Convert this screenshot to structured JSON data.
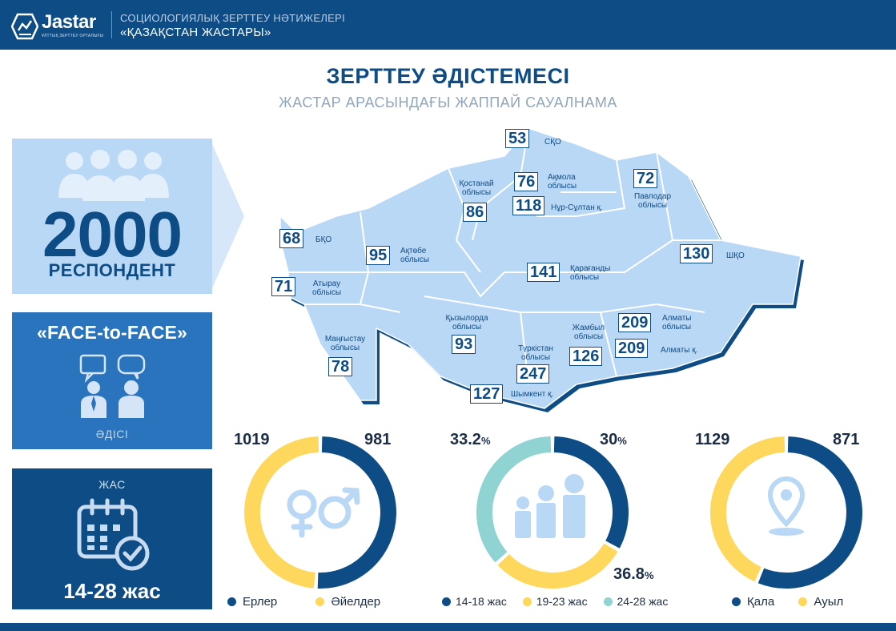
{
  "header": {
    "brand": "Jastar",
    "brand_sub": "ҰЛТТЫҚ ЗЕРТТЕУ ОРТАЛЫҒЫ",
    "line1": "СОЦИОЛОГИЯЛЫҚ ЗЕРТТЕУ НӘТИЖЕЛЕРІ",
    "line2": "«ҚАЗАҚСТАН ЖАСТАРЫ»"
  },
  "title": "ЗЕРТТЕУ ӘДІСТЕМЕСІ",
  "subtitle": "ЖАСТАР АРАСЫНДАҒЫ ЖАППАЙ САУАЛНАМА",
  "respondents": {
    "count": "2000",
    "label": "РЕСПОНДЕНТ",
    "icon": "people-group-icon"
  },
  "method": {
    "title": "«FACE-to-FACE»",
    "label": "ӘДІСІ",
    "icon": "interview-icon"
  },
  "age": {
    "label": "ЖАС",
    "range": "14-28 жас",
    "icon": "calendar-check-icon"
  },
  "regions": [
    {
      "id": "sko",
      "value": "53",
      "name": "СҚО"
    },
    {
      "id": "kostanay",
      "value": "86",
      "name": "Қостанай облысы"
    },
    {
      "id": "akmola",
      "value": "76",
      "name": "Ақмола облысы"
    },
    {
      "id": "nursultan",
      "value": "118",
      "name": "Нұр-Сұлтан қ."
    },
    {
      "id": "pavlodar",
      "value": "72",
      "name": "Павлодар облысы"
    },
    {
      "id": "bko",
      "value": "68",
      "name": "БҚО"
    },
    {
      "id": "aktobe",
      "value": "95",
      "name": "Ақтөбе облысы"
    },
    {
      "id": "vko",
      "value": "130",
      "name": "ШҚО"
    },
    {
      "id": "atyrau",
      "value": "71",
      "name": "Атырау облысы"
    },
    {
      "id": "karaganda",
      "value": "141",
      "name": "Қарағанды облысы"
    },
    {
      "id": "kyzylorda",
      "value": "93",
      "name": "Қызылорда облысы"
    },
    {
      "id": "almaty_obl",
      "value": "209",
      "name": "Алматы облысы"
    },
    {
      "id": "almaty_city",
      "value": "209",
      "name": "Алматы қ."
    },
    {
      "id": "mangystau",
      "value": "78",
      "name": "Маңғыстау облысы"
    },
    {
      "id": "zhambyl",
      "value": "126",
      "name": "Жамбыл облысы"
    },
    {
      "id": "turkistan",
      "value": "247",
      "name": "Түркістан облысы"
    },
    {
      "id": "shymkent",
      "value": "127",
      "name": "Шымкент қ."
    }
  ],
  "chart_data": [
    {
      "type": "pie",
      "variant": "donut",
      "categories": [
        "Ерлер",
        "Әйелдер"
      ],
      "values": [
        1019,
        981
      ],
      "value_labels": [
        "1019",
        "981"
      ],
      "colors": [
        "#0e4c86",
        "#fdd85d"
      ],
      "icon": "gender-symbols-icon",
      "legend_position": "bottom"
    },
    {
      "type": "pie",
      "variant": "donut",
      "categories": [
        "14-18 жас",
        "19-23 жас",
        "24-28 жас"
      ],
      "values": [
        33.2,
        30,
        36.8
      ],
      "value_labels": [
        "33.2",
        "30",
        "36.8"
      ],
      "unit": "%",
      "colors": [
        "#0e4c86",
        "#fdd85d",
        "#8fd3d2"
      ],
      "icon": "family-icon",
      "legend_position": "bottom"
    },
    {
      "type": "pie",
      "variant": "donut",
      "categories": [
        "Қала",
        "Ауыл"
      ],
      "values": [
        1129,
        871
      ],
      "value_labels": [
        "1129",
        "871"
      ],
      "colors": [
        "#0e4c86",
        "#fdd85d"
      ],
      "icon": "map-pin-icon",
      "legend_position": "bottom"
    }
  ],
  "colors": {
    "primary": "#0e4c86",
    "accent_yellow": "#fdd85d",
    "accent_teal": "#8fd3d2",
    "map_fill": "#b9d8f5",
    "method_panel": "#2a74bd"
  }
}
